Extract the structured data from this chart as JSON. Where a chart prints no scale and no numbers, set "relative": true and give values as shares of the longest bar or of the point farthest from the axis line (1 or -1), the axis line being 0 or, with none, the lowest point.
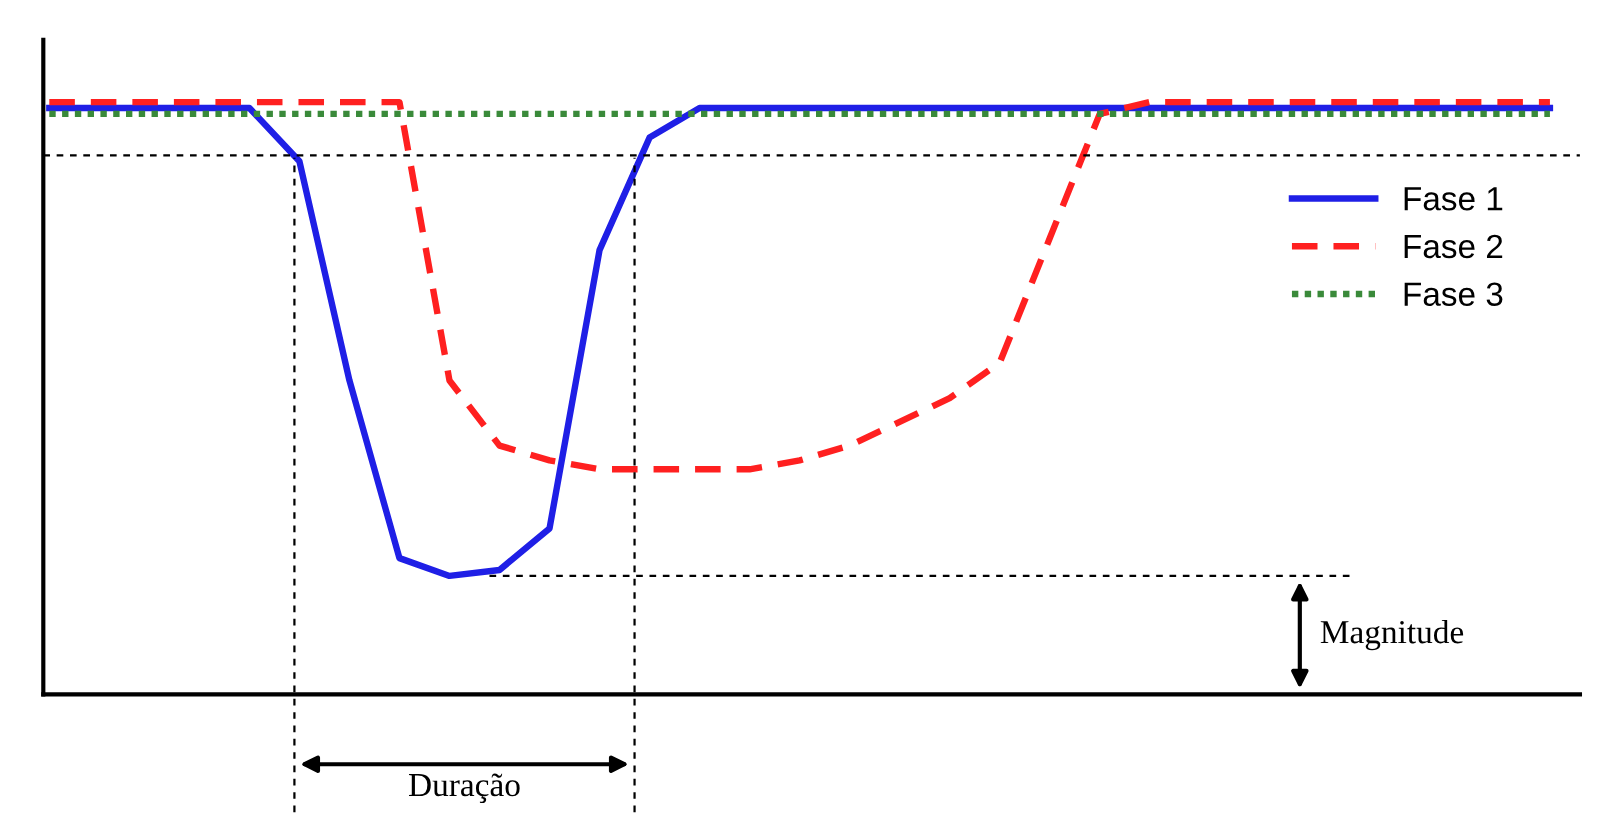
{
  "chart_data": {
    "type": "line",
    "relative": true,
    "grid": false,
    "legend": "right",
    "categories": [
      null,
      null,
      null,
      null,
      null,
      null,
      null,
      null,
      null,
      null,
      null,
      null,
      null,
      null,
      null,
      null,
      null,
      null,
      null,
      null,
      null,
      null,
      null,
      null,
      null,
      null,
      null,
      null,
      null,
      null,
      null
    ],
    "series": [
      {
        "name": "Fase 1",
        "color": "#1f1fe6",
        "line_style": "solid",
        "values": [
          0.99,
          0.99,
          0.99,
          0.99,
          0.99,
          0.9,
          0.53,
          0.23,
          0.2,
          0.21,
          0.28,
          0.75,
          0.94,
          0.99,
          0.99,
          0.99,
          0.99,
          0.99,
          0.99,
          0.99,
          0.99,
          0.99,
          0.99,
          0.99,
          0.99,
          0.99,
          0.99,
          0.99,
          0.99,
          0.99,
          0.99
        ]
      },
      {
        "name": "Fase 2",
        "color": "#ff2020",
        "line_style": "dashed",
        "values": [
          1.0,
          1.0,
          1.0,
          1.0,
          1.0,
          1.0,
          1.0,
          1.0,
          0.53,
          0.42,
          0.395,
          0.38,
          0.38,
          0.38,
          0.38,
          0.395,
          0.42,
          0.46,
          0.5,
          0.56,
          0.77,
          0.98,
          1.0,
          1.0,
          1.0,
          1.0,
          1.0,
          1.0,
          1.0,
          1.0,
          1.0
        ]
      },
      {
        "name": "Fase 3",
        "color": "#3a8a3a",
        "line_style": "dotted",
        "values": [
          0.98,
          0.98,
          0.98,
          0.98,
          0.98,
          0.98,
          0.98,
          0.98,
          0.98,
          0.98,
          0.98,
          0.98,
          0.98,
          0.98,
          0.98,
          0.98,
          0.98,
          0.98,
          0.98,
          0.98,
          0.98,
          0.98,
          0.98,
          0.98,
          0.98,
          0.98,
          0.98,
          0.98,
          0.98,
          0.98,
          0.98
        ]
      }
    ],
    "ref_lines": [
      {
        "axis": "y",
        "value": 0.91,
        "color": "#000000",
        "line_style": "dashed"
      },
      {
        "axis": "y",
        "value": 0.2,
        "color": "#000000",
        "line_style": "dashed"
      }
    ],
    "annotations": [
      "Magnitude",
      "Duração"
    ]
  }
}
